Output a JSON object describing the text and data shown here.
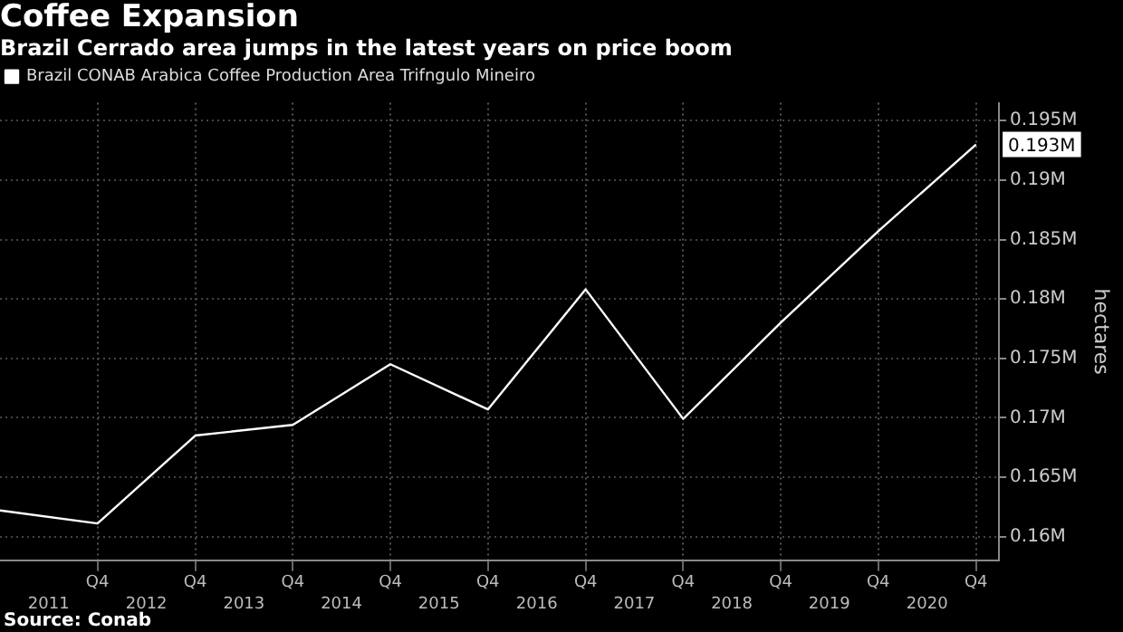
{
  "chart_data": {
    "type": "line",
    "title": "Coffee Expansion",
    "subtitle": "Brazil Cerrado area jumps in the latest years on price boom",
    "ylabel": "hectares",
    "x": [
      "2010-12-31",
      "2011-12-31",
      "2012-12-31",
      "2013-12-31",
      "2014-12-31",
      "2015-12-31",
      "2016-12-31",
      "2017-12-31",
      "2018-12-31",
      "2019-12-31",
      "2020-12-31"
    ],
    "series": [
      {
        "name": "Brazil CONAB Arabica Coffee Production Area Trifngulo Mineiro",
        "color": "#ffffff",
        "values": [
          0.1622,
          0.1611,
          0.1685,
          0.1694,
          0.1745,
          0.1707,
          0.1808,
          0.1699,
          0.178,
          0.1857,
          0.193
        ],
        "value_labels": [
          null,
          null,
          null,
          null,
          null,
          null,
          null,
          null,
          null,
          null,
          "0.193M"
        ]
      }
    ],
    "xlim": [
      "2010-12-31",
      "2021-03-27"
    ],
    "xticks": [
      {
        "value": "2011-12-31",
        "label": "Q4"
      },
      {
        "value": "2012-12-31",
        "label": "Q4"
      },
      {
        "value": "2013-12-31",
        "label": "Q4"
      },
      {
        "value": "2014-12-31",
        "label": "Q4"
      },
      {
        "value": "2015-12-31",
        "label": "Q4"
      },
      {
        "value": "2016-12-31",
        "label": "Q4"
      },
      {
        "value": "2017-12-31",
        "label": "Q4"
      },
      {
        "value": "2018-12-31",
        "label": "Q4"
      },
      {
        "value": "2019-12-31",
        "label": "Q4"
      },
      {
        "value": "2020-12-31",
        "label": "Q4"
      }
    ],
    "x2lim": [
      "2010-12-31",
      "2021-03-27"
    ],
    "x2ticks": [
      {
        "value": "2011-07-01",
        "label": "2011"
      },
      {
        "value": "2012-07-01",
        "label": "2012"
      },
      {
        "value": "2013-07-01",
        "label": "2013"
      },
      {
        "value": "2014-07-01",
        "label": "2014"
      },
      {
        "value": "2015-07-01",
        "label": "2015"
      },
      {
        "value": "2016-07-01",
        "label": "2016"
      },
      {
        "value": "2017-07-01",
        "label": "2017"
      },
      {
        "value": "2018-07-01",
        "label": "2018"
      },
      {
        "value": "2019-07-01",
        "label": "2019"
      },
      {
        "value": "2020-07-01",
        "label": "2020"
      }
    ],
    "ylim": [
      0.158,
      0.1965
    ],
    "yticks": [
      {
        "value": 0.16,
        "label": "0.16M"
      },
      {
        "value": 0.165,
        "label": "0.165M"
      },
      {
        "value": 0.17,
        "label": "0.17M"
      },
      {
        "value": 0.175,
        "label": "0.175M"
      },
      {
        "value": 0.18,
        "label": "0.18M"
      },
      {
        "value": 0.185,
        "label": "0.185M"
      },
      {
        "value": 0.19,
        "label": "0.19M"
      },
      {
        "value": 0.195,
        "label": "0.195M"
      }
    ],
    "grid": true,
    "legend": "top left",
    "marker": "none",
    "line_style": "solid",
    "annotations": [
      "Source: Conab"
    ]
  }
}
